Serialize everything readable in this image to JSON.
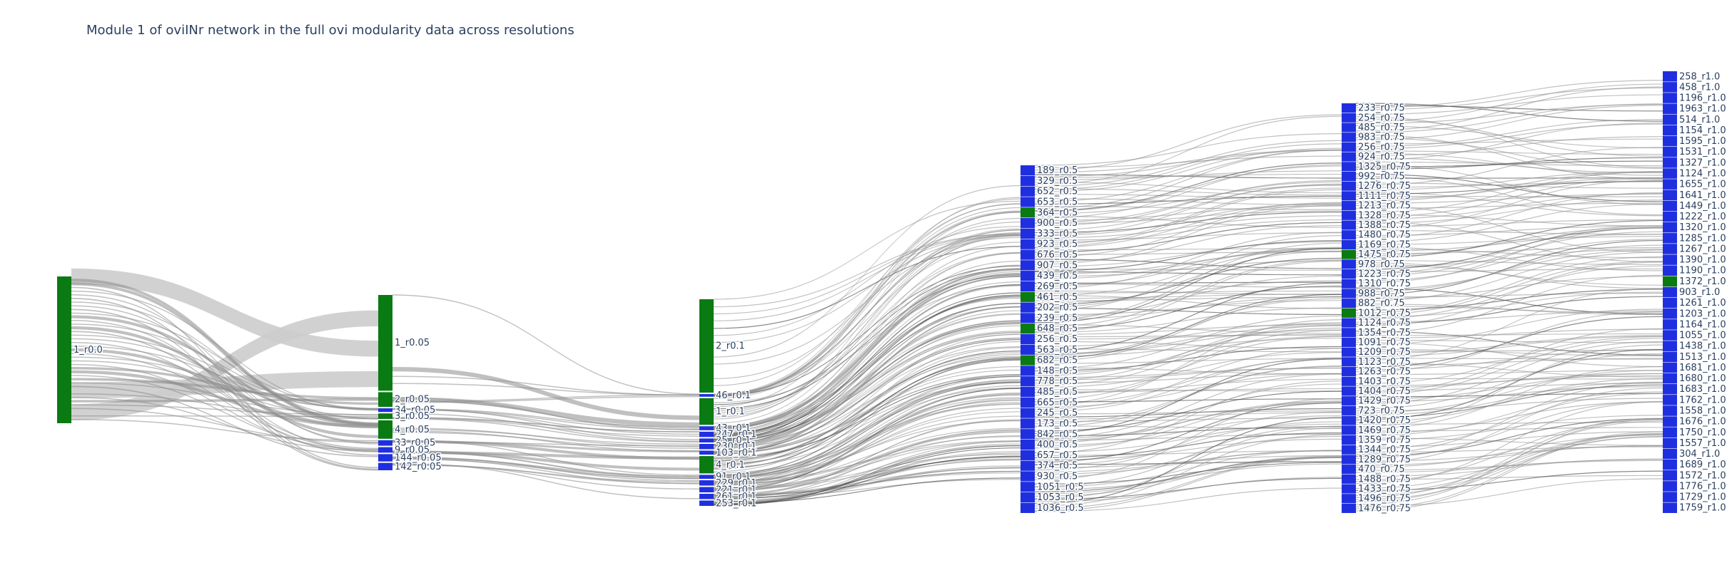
{
  "title": "Module 1 of oviINr network in the full ovi modularity data across resolutions",
  "colors": {
    "module_node": "#0a7a12",
    "other_node": "#1f2fe0",
    "light_link": "#cccccc",
    "mid_link": "#8c8c8c",
    "dark_link": "#3a3a3a",
    "text": "#2a3f5f"
  },
  "chart_data": {
    "type": "sankey",
    "resolutions": [
      "0.0",
      "0.05",
      "0.1",
      "0.5",
      "0.75",
      "1.0"
    ],
    "columns": [
      {
        "resolution": "0.0",
        "nodes": [
          {
            "label": "1_r0.0",
            "weight": 100,
            "module": true
          }
        ]
      },
      {
        "resolution": "0.05",
        "nodes": [
          {
            "label": "1_r0.05",
            "weight": 52,
            "module": true
          },
          {
            "label": "2_r0.05",
            "weight": 8,
            "module": true
          },
          {
            "label": "34_r0.05",
            "weight": 2,
            "module": false
          },
          {
            "label": "3_r0.05",
            "weight": 3,
            "module": true
          },
          {
            "label": "4_r0.05",
            "weight": 10,
            "module": true
          },
          {
            "label": "33_r0.05",
            "weight": 3,
            "module": false
          },
          {
            "label": "9_r0.05",
            "weight": 3,
            "module": false
          },
          {
            "label": "144_r0.05",
            "weight": 4,
            "module": false
          },
          {
            "label": "142_r0.05",
            "weight": 4,
            "module": false
          }
        ]
      },
      {
        "resolution": "0.1",
        "nodes": [
          {
            "label": "2_r0.1",
            "weight": 70,
            "module": true
          },
          {
            "label": "46_r0.1",
            "weight": 2,
            "module": false
          },
          {
            "label": "1_r0.1",
            "weight": 20,
            "module": true
          },
          {
            "label": "43_r0.1",
            "weight": 3,
            "module": false
          },
          {
            "label": "247_r0.1",
            "weight": 4,
            "module": false
          },
          {
            "label": "25_r0.1",
            "weight": 3,
            "module": false
          },
          {
            "label": "230_r0.1",
            "weight": 4,
            "module": false
          },
          {
            "label": "103_r0.1",
            "weight": 3,
            "module": false
          },
          {
            "label": "4_r0.1",
            "weight": 13,
            "module": true
          },
          {
            "label": "91_r0.1",
            "weight": 3,
            "module": false
          },
          {
            "label": "229_r0.1",
            "weight": 4,
            "module": false
          },
          {
            "label": "221_r0.1",
            "weight": 4,
            "module": false
          },
          {
            "label": "261_r0.1",
            "weight": 4,
            "module": false
          },
          {
            "label": "253_r0.1",
            "weight": 4,
            "module": false
          }
        ]
      },
      {
        "resolution": "0.5",
        "nodes": [
          {
            "label": "189_r0.5",
            "weight": 2,
            "module": false
          },
          {
            "label": "329_r0.5",
            "weight": 2,
            "module": false
          },
          {
            "label": "652_r0.5",
            "weight": 2,
            "module": false
          },
          {
            "label": "653_r0.5",
            "weight": 2,
            "module": false
          },
          {
            "label": "364_r0.5",
            "weight": 2,
            "module": true
          },
          {
            "label": "900_r0.5",
            "weight": 2,
            "module": false
          },
          {
            "label": "333_r0.5",
            "weight": 2,
            "module": false
          },
          {
            "label": "923_r0.5",
            "weight": 2,
            "module": false
          },
          {
            "label": "676_r0.5",
            "weight": 2,
            "module": false
          },
          {
            "label": "907_r0.5",
            "weight": 2,
            "module": false
          },
          {
            "label": "439_r0.5",
            "weight": 2,
            "module": false
          },
          {
            "label": "269_r0.5",
            "weight": 2,
            "module": false
          },
          {
            "label": "461_r0.5",
            "weight": 2,
            "module": true
          },
          {
            "label": "202_r0.5",
            "weight": 2,
            "module": false
          },
          {
            "label": "239_r0.5",
            "weight": 2,
            "module": false
          },
          {
            "label": "648_r0.5",
            "weight": 2,
            "module": true
          },
          {
            "label": "256_r0.5",
            "weight": 2,
            "module": false
          },
          {
            "label": "563_r0.5",
            "weight": 2,
            "module": false
          },
          {
            "label": "682_r0.5",
            "weight": 2,
            "module": true
          },
          {
            "label": "148_r0.5",
            "weight": 2,
            "module": false
          },
          {
            "label": "778_r0.5",
            "weight": 2,
            "module": false
          },
          {
            "label": "485_r0.5",
            "weight": 2,
            "module": false
          },
          {
            "label": "665_r0.5",
            "weight": 2,
            "module": false
          },
          {
            "label": "245_r0.5",
            "weight": 2,
            "module": false
          },
          {
            "label": "173_r0.5",
            "weight": 2,
            "module": false
          },
          {
            "label": "842_r0.5",
            "weight": 2,
            "module": false
          },
          {
            "label": "400_r0.5",
            "weight": 2,
            "module": false
          },
          {
            "label": "657_r0.5",
            "weight": 2,
            "module": false
          },
          {
            "label": "374_r0.5",
            "weight": 2,
            "module": false
          },
          {
            "label": "930_r0.5",
            "weight": 2,
            "module": false
          },
          {
            "label": "1051_r0.5",
            "weight": 2,
            "module": false
          },
          {
            "label": "1053_r0.5",
            "weight": 2,
            "module": false
          },
          {
            "label": "1036_r0.5",
            "weight": 2,
            "module": false
          }
        ]
      },
      {
        "resolution": "0.75",
        "nodes": [
          {
            "label": "233_r0.75",
            "weight": 2,
            "module": false
          },
          {
            "label": "254_r0.75",
            "weight": 2,
            "module": false
          },
          {
            "label": "485_r0.75",
            "weight": 2,
            "module": false
          },
          {
            "label": "983_r0.75",
            "weight": 2,
            "module": false
          },
          {
            "label": "256_r0.75",
            "weight": 2,
            "module": false
          },
          {
            "label": "924_r0.75",
            "weight": 2,
            "module": false
          },
          {
            "label": "1325_r0.75",
            "weight": 2,
            "module": false
          },
          {
            "label": "992_r0.75",
            "weight": 2,
            "module": false
          },
          {
            "label": "1276_r0.75",
            "weight": 2,
            "module": false
          },
          {
            "label": "1111_r0.75",
            "weight": 2,
            "module": false
          },
          {
            "label": "1213_r0.75",
            "weight": 2,
            "module": false
          },
          {
            "label": "1328_r0.75",
            "weight": 2,
            "module": false
          },
          {
            "label": "1388_r0.75",
            "weight": 2,
            "module": false
          },
          {
            "label": "1480_r0.75",
            "weight": 2,
            "module": false
          },
          {
            "label": "1169_r0.75",
            "weight": 2,
            "module": false
          },
          {
            "label": "1475_r0.75",
            "weight": 2,
            "module": true
          },
          {
            "label": "978_r0.75",
            "weight": 2,
            "module": false
          },
          {
            "label": "1223_r0.75",
            "weight": 2,
            "module": false
          },
          {
            "label": "1310_r0.75",
            "weight": 2,
            "module": false
          },
          {
            "label": "988_r0.75",
            "weight": 2,
            "module": false
          },
          {
            "label": "882_r0.75",
            "weight": 2,
            "module": false
          },
          {
            "label": "1012_r0.75",
            "weight": 2,
            "module": true
          },
          {
            "label": "1124_r0.75",
            "weight": 2,
            "module": false
          },
          {
            "label": "1354_r0.75",
            "weight": 2,
            "module": false
          },
          {
            "label": "1091_r0.75",
            "weight": 2,
            "module": false
          },
          {
            "label": "1209_r0.75",
            "weight": 2,
            "module": false
          },
          {
            "label": "1123_r0.75",
            "weight": 2,
            "module": false
          },
          {
            "label": "1263_r0.75",
            "weight": 2,
            "module": false
          },
          {
            "label": "1403_r0.75",
            "weight": 2,
            "module": false
          },
          {
            "label": "1404_r0.75",
            "weight": 2,
            "module": false
          },
          {
            "label": "1429_r0.75",
            "weight": 2,
            "module": false
          },
          {
            "label": "723_r0.75",
            "weight": 2,
            "module": false
          },
          {
            "label": "1420_r0.75",
            "weight": 2,
            "module": false
          },
          {
            "label": "1469_r0.75",
            "weight": 2,
            "module": false
          },
          {
            "label": "1359_r0.75",
            "weight": 2,
            "module": false
          },
          {
            "label": "1344_r0.75",
            "weight": 2,
            "module": false
          },
          {
            "label": "1289_r0.75",
            "weight": 2,
            "module": false
          },
          {
            "label": "470_r0.75",
            "weight": 2,
            "module": false
          },
          {
            "label": "1488_r0.75",
            "weight": 2,
            "module": false
          },
          {
            "label": "1433_r0.75",
            "weight": 2,
            "module": false
          },
          {
            "label": "1496_r0.75",
            "weight": 2,
            "module": false
          },
          {
            "label": "1476_r0.75",
            "weight": 2,
            "module": false
          }
        ]
      },
      {
        "resolution": "1.0",
        "nodes": [
          {
            "label": "258_r1.0",
            "weight": 2,
            "module": false
          },
          {
            "label": "458_r1.0",
            "weight": 2,
            "module": false
          },
          {
            "label": "1196_r1.0",
            "weight": 2,
            "module": false
          },
          {
            "label": "1963_r1.0",
            "weight": 2,
            "module": false
          },
          {
            "label": "514_r1.0",
            "weight": 2,
            "module": false
          },
          {
            "label": "1154_r1.0",
            "weight": 2,
            "module": false
          },
          {
            "label": "1595_r1.0",
            "weight": 2,
            "module": false
          },
          {
            "label": "1531_r1.0",
            "weight": 2,
            "module": false
          },
          {
            "label": "1327_r1.0",
            "weight": 2,
            "module": false
          },
          {
            "label": "1124_r1.0",
            "weight": 2,
            "module": false
          },
          {
            "label": "1655_r1.0",
            "weight": 2,
            "module": false
          },
          {
            "label": "1641_r1.0",
            "weight": 2,
            "module": false
          },
          {
            "label": "1449_r1.0",
            "weight": 2,
            "module": false
          },
          {
            "label": "1222_r1.0",
            "weight": 2,
            "module": false
          },
          {
            "label": "1320_r1.0",
            "weight": 2,
            "module": false
          },
          {
            "label": "1285_r1.0",
            "weight": 2,
            "module": false
          },
          {
            "label": "1267_r1.0",
            "weight": 2,
            "module": false
          },
          {
            "label": "1390_r1.0",
            "weight": 2,
            "module": false
          },
          {
            "label": "1190_r1.0",
            "weight": 2,
            "module": false
          },
          {
            "label": "1372_r1.0",
            "weight": 2,
            "module": true
          },
          {
            "label": "903_r1.0",
            "weight": 2,
            "module": false
          },
          {
            "label": "1261_r1.0",
            "weight": 2,
            "module": false
          },
          {
            "label": "1203_r1.0",
            "weight": 2,
            "module": false
          },
          {
            "label": "1164_r1.0",
            "weight": 2,
            "module": false
          },
          {
            "label": "1055_r1.0",
            "weight": 2,
            "module": false
          },
          {
            "label": "1438_r1.0",
            "weight": 2,
            "module": false
          },
          {
            "label": "1513_r1.0",
            "weight": 2,
            "module": false
          },
          {
            "label": "1681_r1.0",
            "weight": 2,
            "module": false
          },
          {
            "label": "1680_r1.0",
            "weight": 2,
            "module": false
          },
          {
            "label": "1683_r1.0",
            "weight": 2,
            "module": false
          },
          {
            "label": "1762_r1.0",
            "weight": 2,
            "module": false
          },
          {
            "label": "1558_r1.0",
            "weight": 2,
            "module": false
          },
          {
            "label": "1676_r1.0",
            "weight": 2,
            "module": false
          },
          {
            "label": "1750_r1.0",
            "weight": 2,
            "module": false
          },
          {
            "label": "1557_r1.0",
            "weight": 2,
            "module": false
          },
          {
            "label": "304_r1.0",
            "weight": 2,
            "module": false
          },
          {
            "label": "1689_r1.0",
            "weight": 2,
            "module": false
          },
          {
            "label": "1572_r1.0",
            "weight": 2,
            "module": false
          },
          {
            "label": "1776_r1.0",
            "weight": 2,
            "module": false
          },
          {
            "label": "1729_r1.0",
            "weight": 2,
            "module": false
          },
          {
            "label": "1759_r1.0",
            "weight": 2,
            "module": false
          }
        ]
      }
    ]
  }
}
